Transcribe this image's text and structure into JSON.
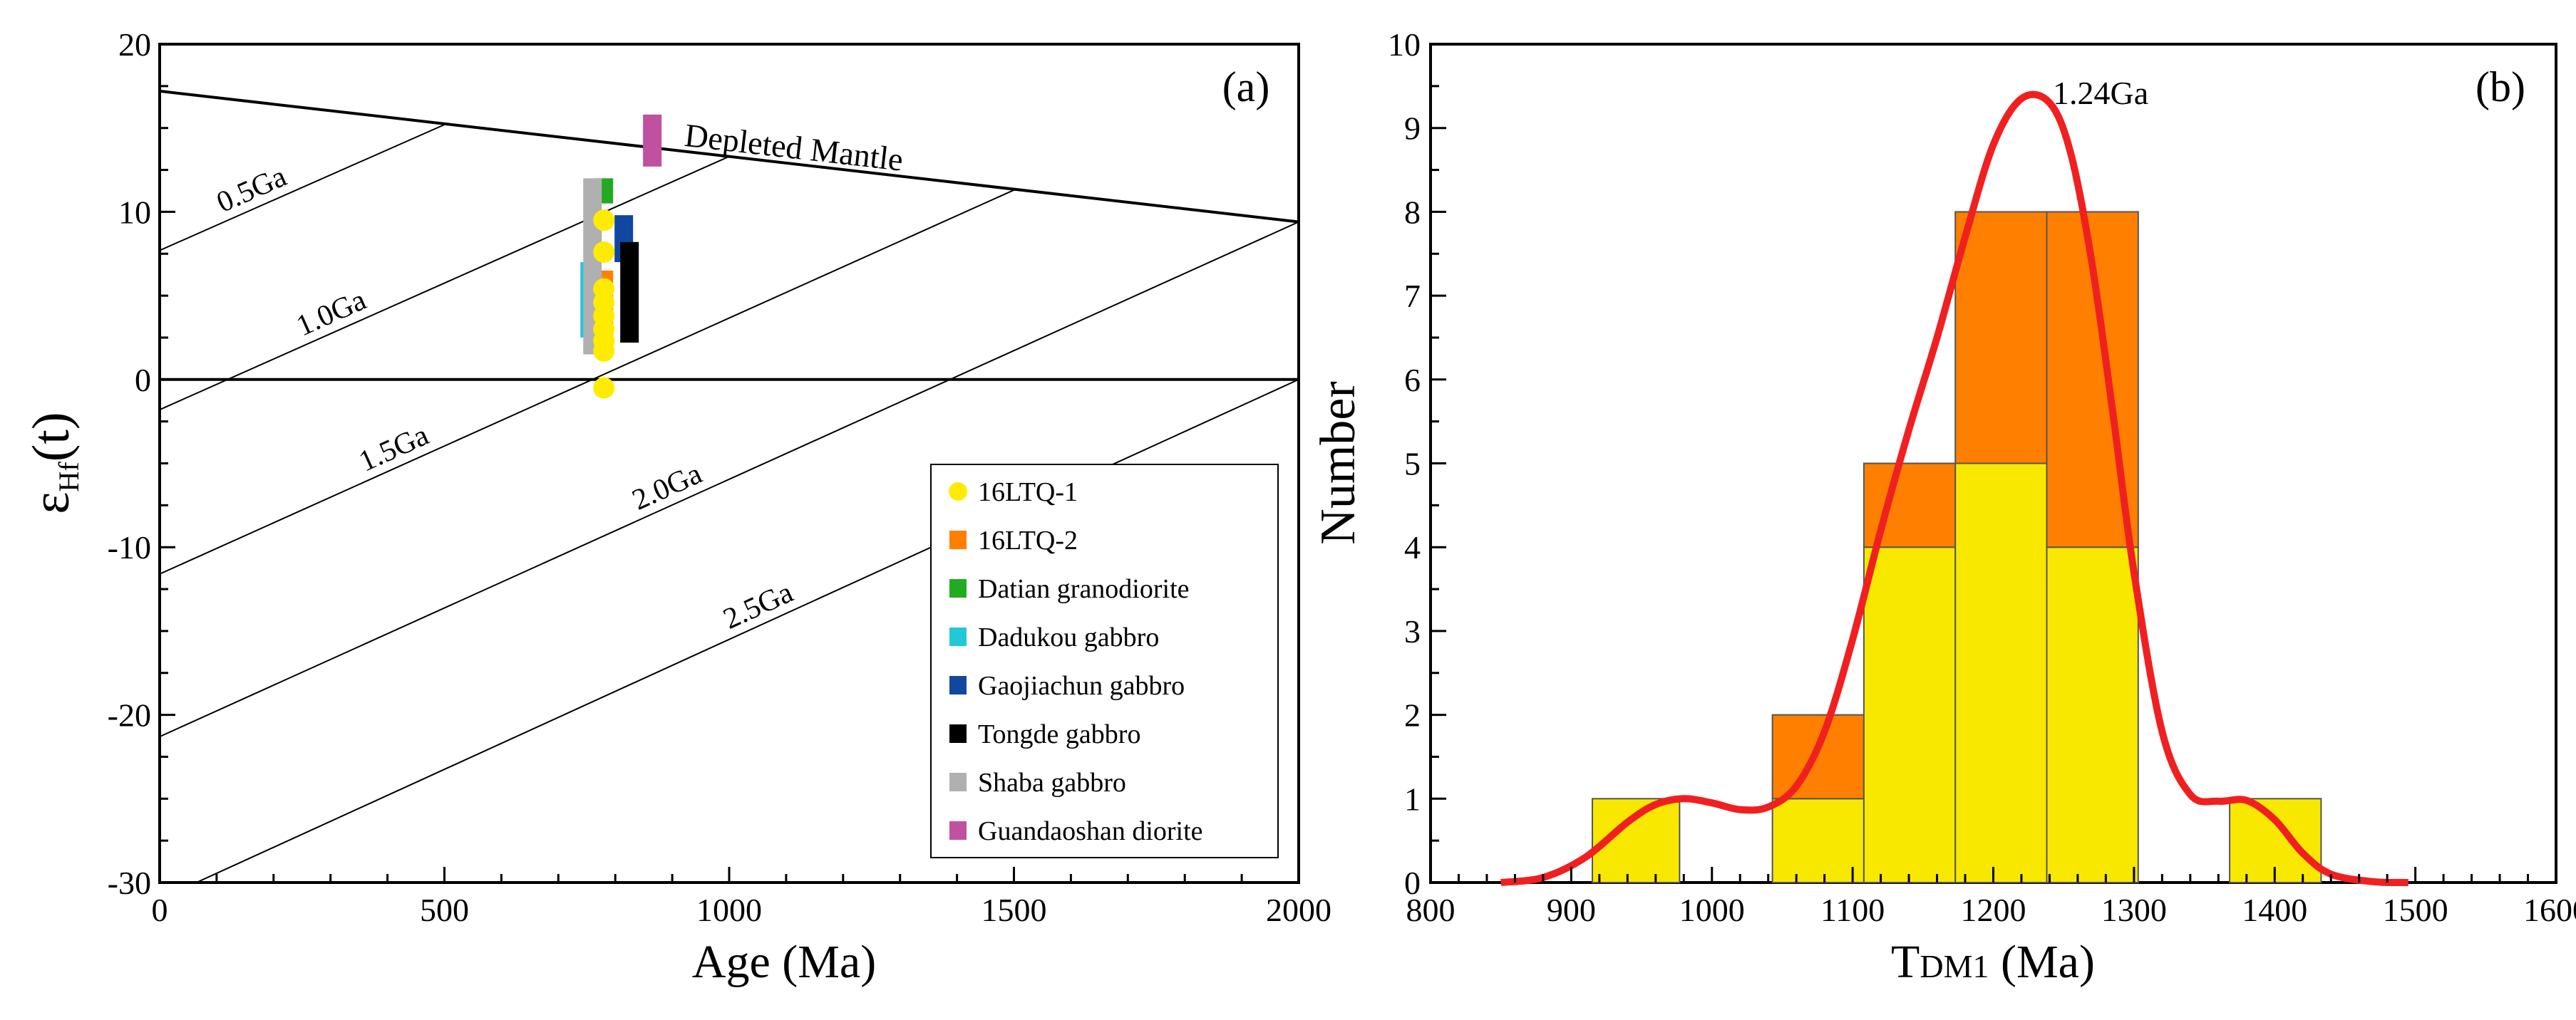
{
  "chart_data": [
    {
      "type": "scatter",
      "panel_label": "(a)",
      "xlabel": "Age (Ma)",
      "ylabel_main": "ε",
      "ylabel_sub": "Hf",
      "ylabel_tail": "(t)",
      "xlim": [
        0,
        2000
      ],
      "ylim": [
        -30,
        20
      ],
      "xticks": [
        "0",
        "500",
        "1000",
        "1500",
        "2000"
      ],
      "yticks": [
        "-30",
        "-20",
        "-10",
        "0",
        "10",
        "20"
      ],
      "zero_line": 0,
      "depleted_mantle": {
        "label": "Depleted Mantle",
        "x": [
          0,
          2000
        ],
        "y": [
          17.2,
          9.4
        ]
      },
      "model_lines": [
        {
          "label": "0.5Ga",
          "x": [
            0,
            500
          ],
          "y": [
            7.7,
            15.2
          ]
        },
        {
          "label": "1.0Ga",
          "x": [
            0,
            1000
          ],
          "y": [
            -1.8,
            13.3
          ]
        },
        {
          "label": "1.5Ga",
          "x": [
            0,
            1500
          ],
          "y": [
            -11.6,
            11.3
          ]
        },
        {
          "label": "2.0Ga",
          "x": [
            0,
            2000
          ],
          "y": [
            -21.3,
            9.4
          ]
        },
        {
          "label": "2.5Ga",
          "x": [
            0,
            2000
          ],
          "y": [
            -31,
            0
          ]
        }
      ],
      "series": [
        {
          "name": "16LTQ-1",
          "marker": "circle",
          "color": "#ffeb00",
          "x": [
            780,
            780,
            780,
            780,
            780,
            780,
            780,
            780,
            780
          ],
          "y": [
            9.5,
            7.6,
            5.4,
            4.6,
            3.8,
            3.0,
            2.3,
            1.7,
            -0.5
          ]
        },
        {
          "name": "16LTQ-2",
          "marker": "rect",
          "color": "#ff7f00",
          "x": [
            780
          ],
          "y_range": [
            [
              1.5,
              6.5
            ]
          ]
        },
        {
          "name": "Datian granodiorite",
          "marker": "rect",
          "color": "#22aa22",
          "x": [
            780
          ],
          "y_range": [
            [
              10.5,
              12.0
            ]
          ]
        },
        {
          "name": "Dadukou gabbro",
          "marker": "rect",
          "color": "#22c8d8",
          "x": [
            755
          ],
          "y_range": [
            [
              2.5,
              7.0
            ]
          ]
        },
        {
          "name": "Gaojiachun gabbro",
          "marker": "rect",
          "color": "#1048a0",
          "x": [
            815
          ],
          "y_range": [
            [
              7.0,
              9.8
            ]
          ]
        },
        {
          "name": "Tongde gabbro",
          "marker": "rect",
          "color": "#000000",
          "x": [
            825
          ],
          "y_range": [
            [
              2.2,
              8.2
            ]
          ]
        },
        {
          "name": "Shaba gabbro",
          "marker": "rect",
          "color": "#b0b0b0",
          "x": [
            760
          ],
          "y_range": [
            [
              1.5,
              12.0
            ]
          ]
        },
        {
          "name": "Guandaoshan diorite",
          "marker": "rect",
          "color": "#c050a0",
          "x": [
            865
          ],
          "y_range": [
            [
              12.7,
              15.8
            ]
          ]
        }
      ],
      "legend_placement": "bottom-right"
    },
    {
      "type": "histogram",
      "panel_label": "(b)",
      "xlabel_main": "T",
      "xlabel_sub": "DM1",
      "xlabel_tail": " (Ma)",
      "ylabel": "Number",
      "xlim": [
        800,
        1600
      ],
      "ylim": [
        0,
        10
      ],
      "xticks": [
        "800",
        "900",
        "1000",
        "1100",
        "1200",
        "1300",
        "1400",
        "1500",
        "1600"
      ],
      "yticks": [
        "0",
        "1",
        "2",
        "3",
        "4",
        "5",
        "6",
        "7",
        "8",
        "9",
        "10"
      ],
      "bin_edges": [
        915,
        977,
        1043,
        1108,
        1173,
        1238,
        1303,
        1368,
        1433
      ],
      "series": [
        {
          "name": "16LTQ-1",
          "color": "#f8e800",
          "values": [
            1,
            0,
            1,
            4,
            5,
            4,
            0,
            1
          ]
        },
        {
          "name": "16LTQ-2",
          "color": "#ff8000",
          "values": [
            0,
            0,
            1,
            1,
            3,
            4,
            0,
            0
          ]
        }
      ],
      "density_curve": {
        "color": "#f02020",
        "peak_label": "1.24Ga",
        "x": [
          850,
          880,
          910,
          940,
          960,
          980,
          1000,
          1020,
          1040,
          1060,
          1080,
          1100,
          1120,
          1140,
          1160,
          1180,
          1200,
          1220,
          1240,
          1255,
          1270,
          1285,
          1300,
          1320,
          1340,
          1360,
          1380,
          1400,
          1420,
          1440,
          1470,
          1495
        ],
        "y": [
          0.0,
          0.06,
          0.3,
          0.72,
          0.93,
          1.0,
          0.95,
          0.87,
          0.9,
          1.15,
          1.8,
          2.9,
          4.2,
          5.4,
          6.5,
          7.7,
          8.8,
          9.35,
          9.3,
          8.7,
          7.4,
          5.6,
          3.7,
          1.8,
          1.05,
          0.97,
          0.98,
          0.75,
          0.35,
          0.1,
          0.01,
          0.0
        ]
      }
    }
  ]
}
